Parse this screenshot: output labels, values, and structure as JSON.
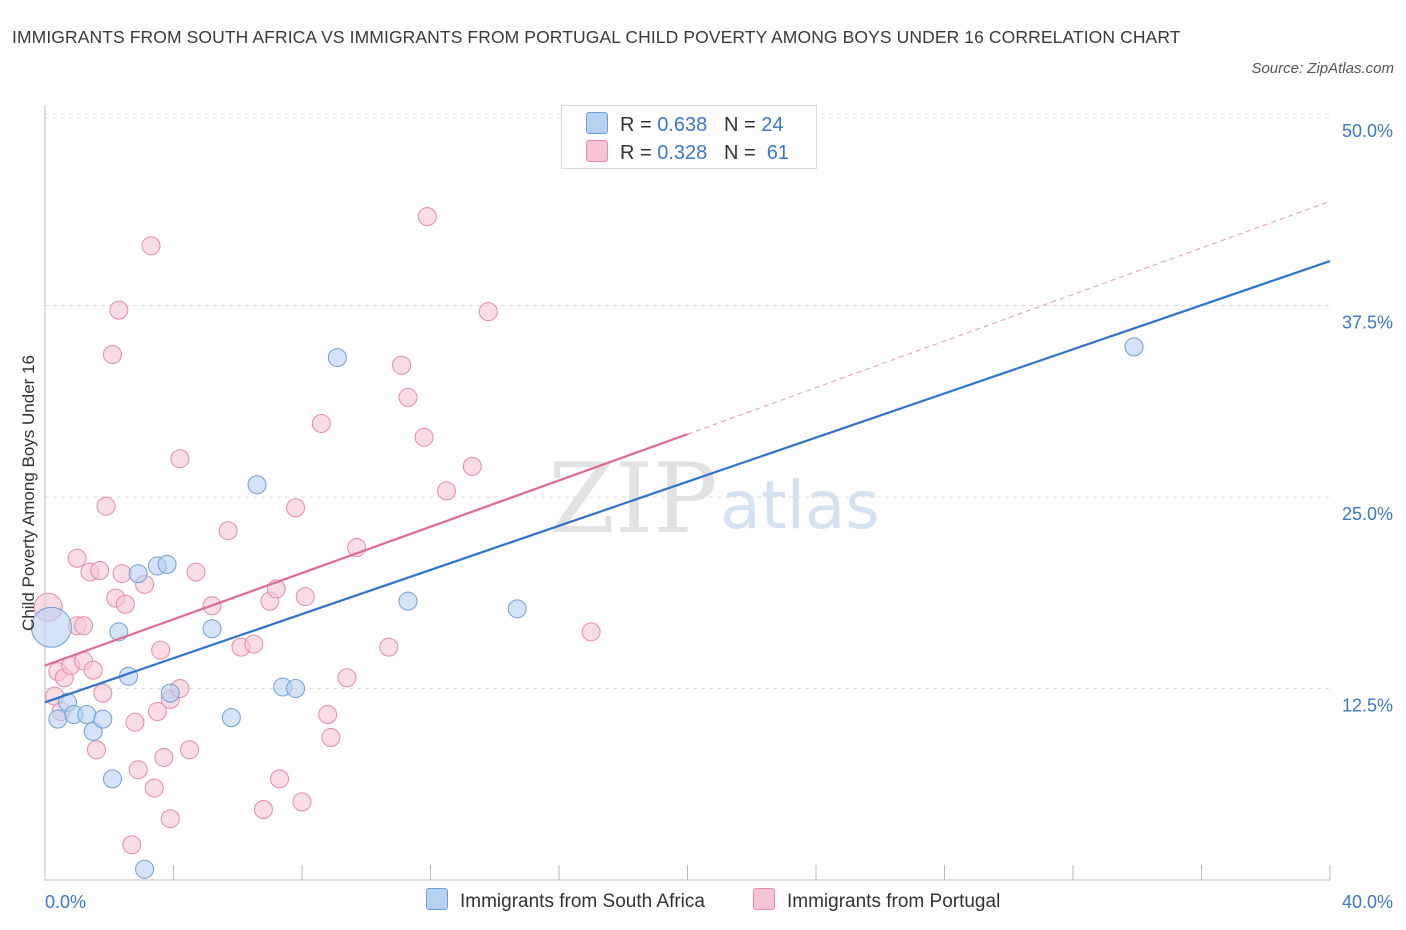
{
  "title": "IMMIGRANTS FROM SOUTH AFRICA VS IMMIGRANTS FROM PORTUGAL CHILD POVERTY AMONG BOYS UNDER 16 CORRELATION CHART",
  "source": "Source: ZipAtlas.com",
  "watermark": {
    "zip": "ZIP",
    "atlas": "atlas"
  },
  "colors": {
    "blue_fill": "#b8d1f3",
    "blue_stroke": "#6f9fd8",
    "blue_line": "#2f74cc",
    "pink_fill": "#f7c4d3",
    "pink_stroke": "#e88aa7",
    "pink_line": "#e06a91",
    "value_text": "#3b78c8",
    "grid": "#dcdcdc"
  },
  "legend": {
    "rows": [
      {
        "r_label": "R = ",
        "r_value": "0.638",
        "n_label": "N = ",
        "n_value": "24"
      },
      {
        "r_label": "R = ",
        "r_value": "0.328",
        "n_label": "N = ",
        "n_value": "61"
      }
    ]
  },
  "chart_data": {
    "type": "scatter",
    "xlabel": "",
    "ylabel": "Child Poverty Among Boys Under 16",
    "xlim": [
      0,
      40
    ],
    "ylim": [
      0,
      50
    ],
    "x_tick_labels": [
      "0.0%",
      "40.0%"
    ],
    "y_tick_labels": [
      "12.5%",
      "25.0%",
      "37.5%",
      "50.0%"
    ],
    "y_ticks": [
      12.5,
      25,
      37.5,
      50
    ],
    "series": [
      {
        "name": "Immigrants from South Africa",
        "color": "blue",
        "trend": {
          "x": [
            0,
            40
          ],
          "y": [
            11.6,
            40.4
          ],
          "dashed_extension": false
        },
        "points": [
          [
            0.2,
            16.5,
            20
          ],
          [
            0.4,
            10.5,
            9
          ],
          [
            0.7,
            11.6,
            9
          ],
          [
            0.9,
            10.8,
            9
          ],
          [
            1.3,
            10.8,
            9
          ],
          [
            1.5,
            9.7,
            9
          ],
          [
            1.8,
            10.5,
            9
          ],
          [
            2.1,
            6.6,
            9
          ],
          [
            2.3,
            16.2,
            9
          ],
          [
            2.6,
            13.3,
            9
          ],
          [
            2.9,
            20.0,
            9
          ],
          [
            3.1,
            0.7,
            9
          ],
          [
            3.5,
            20.5,
            9
          ],
          [
            3.8,
            20.6,
            9
          ],
          [
            3.9,
            12.2,
            9
          ],
          [
            5.2,
            16.4,
            9
          ],
          [
            5.8,
            10.6,
            9
          ],
          [
            6.6,
            25.8,
            9
          ],
          [
            7.4,
            12.6,
            9
          ],
          [
            7.8,
            12.5,
            9
          ],
          [
            9.1,
            34.1,
            9
          ],
          [
            11.3,
            18.2,
            9
          ],
          [
            14.7,
            17.7,
            9
          ],
          [
            33.9,
            34.8,
            9
          ]
        ]
      },
      {
        "name": "Immigrants from Portugal",
        "color": "pink",
        "trend": {
          "x": [
            0,
            20
          ],
          "y": [
            14.0,
            29.1
          ],
          "dash_to": [
            40,
            44.3
          ],
          "dashed_extension": true
        },
        "points": [
          [
            0.1,
            17.8,
            14
          ],
          [
            0.3,
            12.0,
            9
          ],
          [
            0.4,
            13.6,
            9
          ],
          [
            0.5,
            11.0,
            9
          ],
          [
            0.6,
            13.2,
            9
          ],
          [
            0.8,
            14.0,
            9
          ],
          [
            1.0,
            16.6,
            9
          ],
          [
            1.0,
            21.0,
            9
          ],
          [
            1.2,
            14.3,
            9
          ],
          [
            1.2,
            16.6,
            9
          ],
          [
            1.4,
            20.1,
            9
          ],
          [
            1.5,
            13.7,
            9
          ],
          [
            1.6,
            8.5,
            9
          ],
          [
            1.7,
            20.2,
            9
          ],
          [
            1.8,
            12.2,
            9
          ],
          [
            1.9,
            24.4,
            9
          ],
          [
            2.1,
            34.3,
            9
          ],
          [
            2.2,
            18.4,
            9
          ],
          [
            2.3,
            37.2,
            9
          ],
          [
            2.4,
            20.0,
            9
          ],
          [
            2.5,
            18.0,
            9
          ],
          [
            2.7,
            2.3,
            9
          ],
          [
            2.8,
            10.3,
            9
          ],
          [
            2.9,
            7.2,
            9
          ],
          [
            3.1,
            19.3,
            9
          ],
          [
            3.3,
            41.4,
            9
          ],
          [
            3.4,
            6.0,
            9
          ],
          [
            3.5,
            11.0,
            9
          ],
          [
            3.6,
            15.0,
            9
          ],
          [
            3.7,
            8.0,
            9
          ],
          [
            3.9,
            4.0,
            9
          ],
          [
            3.9,
            11.8,
            9
          ],
          [
            4.2,
            12.5,
            9
          ],
          [
            4.2,
            27.5,
            9
          ],
          [
            4.5,
            8.5,
            9
          ],
          [
            4.7,
            20.1,
            9
          ],
          [
            5.2,
            17.9,
            9
          ],
          [
            5.7,
            22.8,
            9
          ],
          [
            6.1,
            15.2,
            9
          ],
          [
            6.5,
            15.4,
            9
          ],
          [
            6.8,
            4.6,
            9
          ],
          [
            7.0,
            18.2,
            9
          ],
          [
            7.2,
            19.0,
            9
          ],
          [
            7.3,
            6.6,
            9
          ],
          [
            7.8,
            24.3,
            9
          ],
          [
            8.0,
            5.1,
            9
          ],
          [
            8.1,
            18.5,
            9
          ],
          [
            8.6,
            29.8,
            9
          ],
          [
            8.8,
            10.8,
            9
          ],
          [
            8.9,
            9.3,
            9
          ],
          [
            9.4,
            13.2,
            9
          ],
          [
            9.7,
            21.7,
            9
          ],
          [
            10.7,
            15.2,
            9
          ],
          [
            11.1,
            33.6,
            9
          ],
          [
            11.3,
            31.5,
            9
          ],
          [
            11.8,
            28.9,
            9
          ],
          [
            11.9,
            43.3,
            9
          ],
          [
            12.5,
            25.4,
            9
          ],
          [
            13.3,
            27.0,
            9
          ],
          [
            13.8,
            37.1,
            9
          ],
          [
            17.0,
            16.2,
            9
          ]
        ]
      }
    ]
  }
}
